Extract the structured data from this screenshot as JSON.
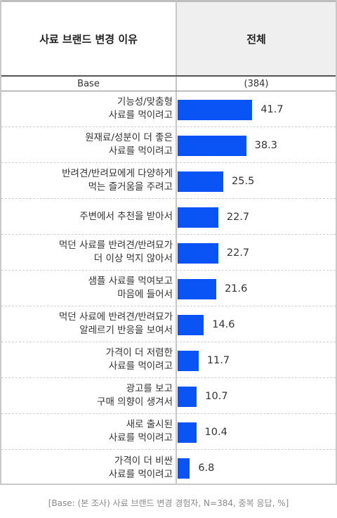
{
  "header": {
    "left_title": "사료 브랜드 변경 이유",
    "right_title": "전체"
  },
  "base": {
    "label": "Base",
    "value": "(384)"
  },
  "chart_data": {
    "type": "bar",
    "orientation": "horizontal",
    "categories": [
      [
        "기능성/맞춤형",
        "사료를 먹이려고"
      ],
      [
        "원재료/성분이 더 좋은",
        "사료를 먹이려고"
      ],
      [
        "반려견/반려묘에게 다양하게",
        "먹는 즐거움을 주려고"
      ],
      [
        "주변에서 추천을 받아서"
      ],
      [
        "먹던 사료를 반려견/반려묘가",
        "더 이상 먹지 않아서"
      ],
      [
        "샘플 사료를 먹여보고",
        "마음에 들어서"
      ],
      [
        "먹던 사료에 반려견/반려묘가",
        "알레르기 반응을 보여서"
      ],
      [
        "가격이 더 저렴한",
        "사료를 먹이려고"
      ],
      [
        "광고를 보고",
        "구매 의향이 생겨서"
      ],
      [
        "새로 출시된",
        "사료를 먹이려고"
      ],
      [
        "가격이 더 비싼",
        "사료를 먹이려고"
      ]
    ],
    "values": [
      41.7,
      38.3,
      25.5,
      22.7,
      22.7,
      21.6,
      14.6,
      11.7,
      10.7,
      10.4,
      6.8
    ],
    "value_labels": [
      "41.7",
      "38.3",
      "25.5",
      "22.7",
      "22.7",
      "21.6",
      "14.6",
      "11.7",
      "10.7",
      "10.4",
      "6.8"
    ],
    "bar_color": "#0a53f5",
    "xlim": [
      0,
      100
    ],
    "grid": false,
    "legend": "none"
  },
  "footnote": "[Base: (본 조사) 사료 브랜드 변경 경험자, N=384, 중복 응답, %]"
}
